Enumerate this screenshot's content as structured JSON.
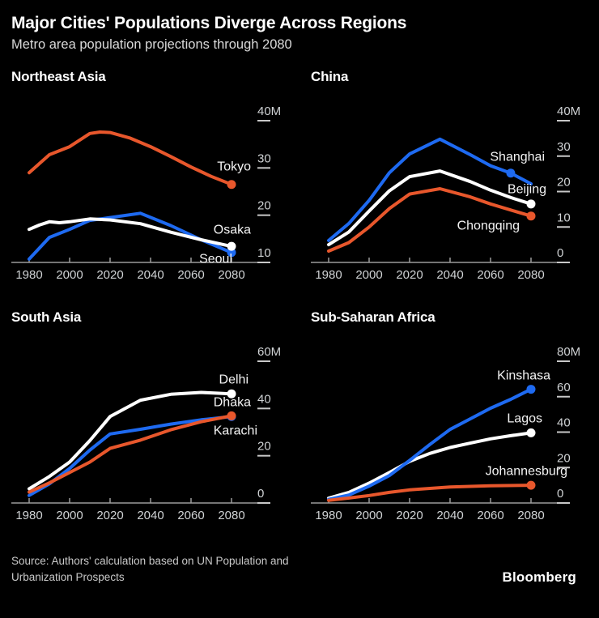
{
  "header": {
    "title": "Major Cities' Populations Diverge Across Regions",
    "subtitle": "Metro area population projections through 2080"
  },
  "footer": {
    "source_lines": [
      "Source: Authors' calculation based on UN Population and",
      "Urbanization Prospects"
    ],
    "brand": "Bloomberg"
  },
  "colors": {
    "background": "#000000",
    "orange": "#e8572c",
    "blue": "#1e6af1",
    "white": "#ffffff",
    "axis": "#9b9b9b",
    "tick_text": "#cfd2d4",
    "tick_dash": "#c8c8c8",
    "series_label_text": "#f3f3f3"
  },
  "chart_data": [
    {
      "type": "line",
      "title": "Northeast Asia",
      "x_range": [
        1980,
        2080
      ],
      "x_ticks": [
        1980,
        2000,
        2020,
        2040,
        2060,
        2080
      ],
      "y_min": 10,
      "y_max": 40,
      "y_ticks": [
        {
          "value": 10,
          "label": "10"
        },
        {
          "value": 20,
          "label": "20"
        },
        {
          "value": 30,
          "label": "30"
        },
        {
          "value": 40,
          "label": "40M"
        }
      ],
      "series": [
        {
          "name": "Tokyo",
          "color": "orange",
          "dot_year": 2080,
          "points": [
            [
              1980,
              29.0
            ],
            [
              1990,
              32.8
            ],
            [
              2000,
              34.5
            ],
            [
              2010,
              37.3
            ],
            [
              2015,
              37.6
            ],
            [
              2020,
              37.5
            ],
            [
              2030,
              36.3
            ],
            [
              2040,
              34.5
            ],
            [
              2050,
              32.4
            ],
            [
              2060,
              30.2
            ],
            [
              2070,
              28.2
            ],
            [
              2080,
              26.5
            ]
          ],
          "label": {
            "text": "Tokyo",
            "x": 310,
            "y": 94,
            "anchor": "end"
          }
        },
        {
          "name": "Seoul",
          "color": "blue",
          "dot_year": 2080,
          "points": [
            [
              1980,
              10.7
            ],
            [
              1990,
              15.3
            ],
            [
              2000,
              17.0
            ],
            [
              2010,
              18.9
            ],
            [
              2020,
              19.5
            ],
            [
              2035,
              20.4
            ],
            [
              2050,
              17.8
            ],
            [
              2065,
              14.8
            ],
            [
              2080,
              12.1
            ]
          ],
          "label": {
            "text": "Seoul",
            "x": 287,
            "y": 208,
            "anchor": "end"
          }
        },
        {
          "name": "Osaka",
          "color": "white",
          "dot_year": 2080,
          "points": [
            [
              1980,
              17.0
            ],
            [
              1985,
              17.9
            ],
            [
              1990,
              18.6
            ],
            [
              1995,
              18.4
            ],
            [
              2000,
              18.6
            ],
            [
              2010,
              19.2
            ],
            [
              2020,
              19.0
            ],
            [
              2035,
              18.2
            ],
            [
              2050,
              16.4
            ],
            [
              2065,
              14.8
            ],
            [
              2080,
              13.4
            ]
          ],
          "label": {
            "text": "Osaka",
            "x": 310,
            "y": 172,
            "anchor": "end"
          }
        }
      ]
    },
    {
      "type": "line",
      "title": "China",
      "x_range": [
        1980,
        2080
      ],
      "x_ticks": [
        1980,
        2000,
        2020,
        2040,
        2060,
        2080
      ],
      "y_min": 0,
      "y_max": 40,
      "y_ticks": [
        {
          "value": 0,
          "label": "0"
        },
        {
          "value": 10,
          "label": "10"
        },
        {
          "value": 20,
          "label": "20"
        },
        {
          "value": 30,
          "label": "30"
        },
        {
          "value": 40,
          "label": "40M"
        }
      ],
      "series": [
        {
          "name": "Shanghai",
          "color": "blue",
          "dot_year": 2070,
          "points": [
            [
              1980,
              6.2
            ],
            [
              1990,
              11.0
            ],
            [
              2000,
              17.5
            ],
            [
              2010,
              25.3
            ],
            [
              2020,
              30.6
            ],
            [
              2035,
              34.8
            ],
            [
              2050,
              30.4
            ],
            [
              2060,
              27.3
            ],
            [
              2070,
              25.2
            ],
            [
              2080,
              22.2
            ]
          ],
          "label": {
            "text": "Shanghai",
            "x": 303,
            "y": 82,
            "anchor": "end"
          }
        },
        {
          "name": "Beijing",
          "color": "white",
          "dot_year": 2080,
          "points": [
            [
              1980,
              5.0
            ],
            [
              1990,
              8.6
            ],
            [
              2000,
              14.5
            ],
            [
              2010,
              20.2
            ],
            [
              2020,
              24.2
            ],
            [
              2035,
              25.8
            ],
            [
              2050,
              22.8
            ],
            [
              2060,
              20.4
            ],
            [
              2070,
              18.3
            ],
            [
              2080,
              16.5
            ]
          ],
          "label": {
            "text": "Beijing",
            "x": 305,
            "y": 122,
            "anchor": "end"
          }
        },
        {
          "name": "Chongqing",
          "color": "orange",
          "dot_year": 2080,
          "points": [
            [
              1980,
              3.2
            ],
            [
              1990,
              5.6
            ],
            [
              2000,
              10.0
            ],
            [
              2010,
              15.2
            ],
            [
              2020,
              19.3
            ],
            [
              2035,
              20.8
            ],
            [
              2050,
              18.5
            ],
            [
              2060,
              16.5
            ],
            [
              2070,
              14.8
            ],
            [
              2080,
              13.1
            ]
          ],
          "label": {
            "text": "Chongqing",
            "x": 272,
            "y": 167,
            "anchor": "end"
          }
        }
      ]
    },
    {
      "type": "line",
      "title": "South Asia",
      "x_range": [
        1980,
        2080
      ],
      "x_ticks": [
        1980,
        2000,
        2020,
        2040,
        2060,
        2080
      ],
      "y_min": 0,
      "y_max": 60,
      "y_ticks": [
        {
          "value": 0,
          "label": "0"
        },
        {
          "value": 20,
          "label": "20"
        },
        {
          "value": 40,
          "label": "40"
        },
        {
          "value": 60,
          "label": "60M"
        }
      ],
      "series": [
        {
          "name": "Delhi",
          "color": "white",
          "dot_year": 2080,
          "points": [
            [
              1980,
              6.0
            ],
            [
              1990,
              11.2
            ],
            [
              2000,
              17.3
            ],
            [
              2010,
              26.4
            ],
            [
              2020,
              36.6
            ],
            [
              2035,
              43.5
            ],
            [
              2050,
              46.0
            ],
            [
              2065,
              46.8
            ],
            [
              2080,
              46.2
            ]
          ],
          "label": {
            "text": "Delhi",
            "x": 307,
            "y": 60,
            "anchor": "end"
          }
        },
        {
          "name": "Dhaka",
          "color": "blue",
          "dot_year": 2080,
          "points": [
            [
              1980,
              3.2
            ],
            [
              1990,
              8.1
            ],
            [
              2000,
              14.6
            ],
            [
              2010,
              22.4
            ],
            [
              2020,
              29.2
            ],
            [
              2035,
              31.2
            ],
            [
              2050,
              33.4
            ],
            [
              2065,
              35.2
            ],
            [
              2080,
              36.6
            ]
          ],
          "label": {
            "text": "Dhaka",
            "x": 310,
            "y": 88,
            "anchor": "end"
          }
        },
        {
          "name": "Karachi",
          "color": "orange",
          "dot_year": 2080,
          "points": [
            [
              1980,
              4.6
            ],
            [
              1990,
              8.5
            ],
            [
              2000,
              12.9
            ],
            [
              2010,
              17.3
            ],
            [
              2020,
              23.1
            ],
            [
              2035,
              26.6
            ],
            [
              2050,
              31.0
            ],
            [
              2065,
              34.4
            ],
            [
              2080,
              36.9
            ]
          ],
          "label": {
            "text": "Karachi",
            "x": 318,
            "y": 123,
            "anchor": "end"
          }
        }
      ]
    },
    {
      "type": "line",
      "title": "Sub-Saharan Africa",
      "x_range": [
        1980,
        2080
      ],
      "x_ticks": [
        1980,
        2000,
        2020,
        2040,
        2060,
        2080
      ],
      "y_min": 0,
      "y_max": 80,
      "y_ticks": [
        {
          "value": 0,
          "label": "0"
        },
        {
          "value": 20,
          "label": "20"
        },
        {
          "value": 40,
          "label": "40"
        },
        {
          "value": 60,
          "label": "60"
        },
        {
          "value": 80,
          "label": "80M"
        }
      ],
      "series": [
        {
          "name": "Lagos",
          "color": "white",
          "dot_year": 2080,
          "points": [
            [
              1980,
              2.7
            ],
            [
              1990,
              6.0
            ],
            [
              2000,
              11.2
            ],
            [
              2010,
              17.2
            ],
            [
              2020,
              23.5
            ],
            [
              2030,
              28.0
            ],
            [
              2040,
              31.3
            ],
            [
              2050,
              33.8
            ],
            [
              2060,
              36.2
            ],
            [
              2070,
              38.0
            ],
            [
              2080,
              39.6
            ]
          ],
          "label": {
            "text": "Lagos",
            "x": 300,
            "y": 108,
            "anchor": "end"
          }
        },
        {
          "name": "Kinshasa",
          "color": "blue",
          "dot_year": 2080,
          "points": [
            [
              1980,
              2.0
            ],
            [
              1990,
              4.5
            ],
            [
              2000,
              9.5
            ],
            [
              2010,
              15.5
            ],
            [
              2020,
              24.0
            ],
            [
              2030,
              33.0
            ],
            [
              2040,
              41.5
            ],
            [
              2050,
              47.5
            ],
            [
              2060,
              53.5
            ],
            [
              2070,
              58.5
            ],
            [
              2080,
              64.2
            ]
          ],
          "label": {
            "text": "Kinshasa",
            "x": 310,
            "y": 55,
            "anchor": "end"
          }
        },
        {
          "name": "Johannesburg",
          "color": "orange",
          "dot_year": 2080,
          "points": [
            [
              1980,
              1.5
            ],
            [
              1990,
              2.8
            ],
            [
              2000,
              4.2
            ],
            [
              2010,
              6.0
            ],
            [
              2020,
              7.4
            ],
            [
              2040,
              9.0
            ],
            [
              2060,
              9.7
            ],
            [
              2080,
              10.0
            ]
          ],
          "label": {
            "text": "Johannesburg",
            "x": 331,
            "y": 173,
            "anchor": "end"
          }
        }
      ]
    }
  ]
}
